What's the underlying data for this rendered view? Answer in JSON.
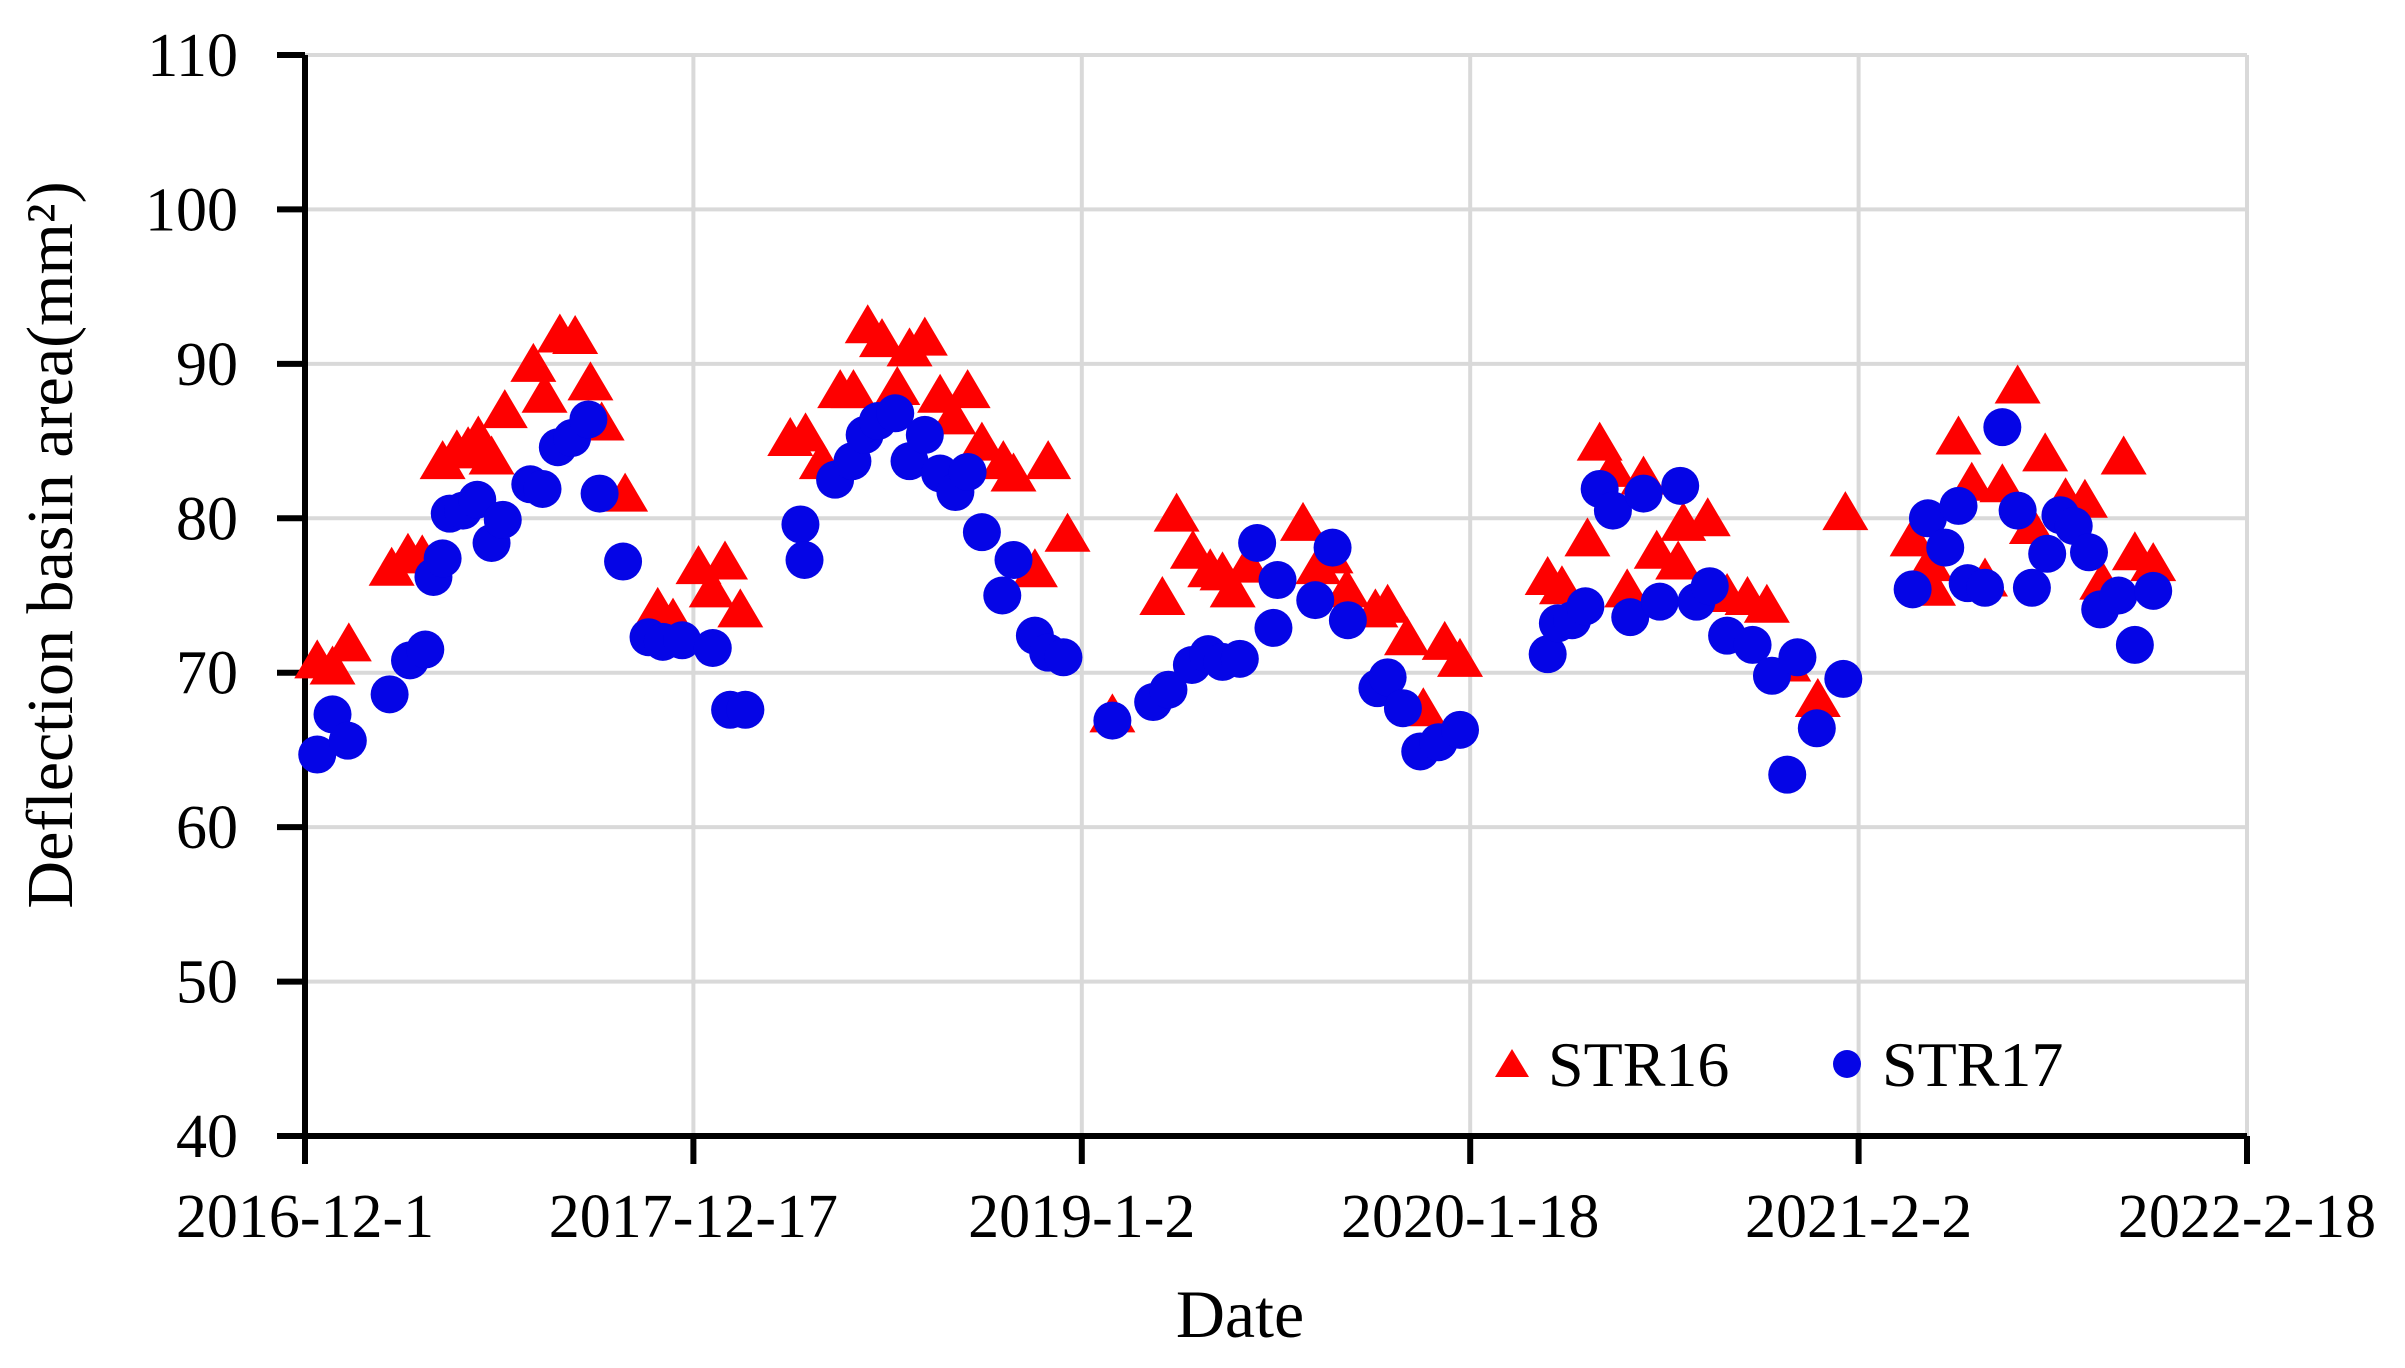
{
  "figure": {
    "background": "#ffffff"
  },
  "colors": {
    "grid": "#d9d9d9",
    "axis": "#000000",
    "text": "#000000",
    "str16": "#fe0000",
    "str17": "#0505e6"
  },
  "legend": {
    "str16_label": "STR16",
    "str17_label": "STR17"
  },
  "chart_data": {
    "type": "scatter",
    "title": "",
    "xlabel": "Date",
    "ylabel": "Deflection basin area(mm²)",
    "grid": true,
    "legend_position": "inside-bottom-right",
    "x_axis": {
      "unit": "days since 2016-12-1",
      "min": 0,
      "max": 1905,
      "tick_days": [
        0,
        381,
        762,
        1143,
        1524,
        1905
      ],
      "tick_labels": [
        "2016-12-1",
        "2017-12-17",
        "2019-1-2",
        "2020-1-18",
        "2021-2-2",
        "2022-2-18"
      ]
    },
    "y_axis": {
      "min": 40,
      "max": 110,
      "tick_step": 10,
      "ticks": [
        40,
        50,
        60,
        70,
        80,
        90,
        100,
        110
      ],
      "tick_labels": [
        "40",
        "50",
        "60",
        "70",
        "80",
        "90",
        "100",
        "110"
      ]
    },
    "series": [
      {
        "name": "STR16",
        "marker": "triangle",
        "color": "#fe0000",
        "points": [
          [
            12,
            70.8
          ],
          [
            27,
            70.4
          ],
          [
            43,
            71.9
          ],
          [
            85,
            76.8
          ],
          [
            101,
            77.7
          ],
          [
            115,
            77.6
          ],
          [
            135,
            83.7
          ],
          [
            149,
            84.4
          ],
          [
            160,
            84.6
          ],
          [
            170,
            85.3
          ],
          [
            183,
            84.0
          ],
          [
            196,
            87.0
          ],
          [
            224,
            90.0
          ],
          [
            235,
            88.0
          ],
          [
            250,
            91.9
          ],
          [
            265,
            91.8
          ],
          [
            280,
            88.8
          ],
          [
            291,
            86.2
          ],
          [
            314,
            81.6
          ],
          [
            346,
            74.2
          ],
          [
            361,
            73.5
          ],
          [
            386,
            76.9
          ],
          [
            399,
            75.4
          ],
          [
            412,
            77.2
          ],
          [
            427,
            74.1
          ],
          [
            476,
            85.2
          ],
          [
            491,
            85.5
          ],
          [
            507,
            83.7
          ],
          [
            525,
            88.3
          ],
          [
            538,
            88.3
          ],
          [
            552,
            92.5
          ],
          [
            566,
            91.6
          ],
          [
            581,
            88.5
          ],
          [
            593,
            91.0
          ],
          [
            608,
            91.7
          ],
          [
            623,
            88.0
          ],
          [
            636,
            86.6
          ],
          [
            650,
            88.3
          ],
          [
            664,
            84.9
          ],
          [
            685,
            83.7
          ],
          [
            695,
            82.9
          ],
          [
            716,
            76.7
          ],
          [
            729,
            83.7
          ],
          [
            748,
            79.0
          ],
          [
            792,
            67.3
          ],
          [
            841,
            74.9
          ],
          [
            855,
            80.3
          ],
          [
            871,
            77.9
          ],
          [
            888,
            76.7
          ],
          [
            900,
            76.5
          ],
          [
            910,
            75.4
          ],
          [
            925,
            77.0
          ],
          [
            979,
            79.7
          ],
          [
            994,
            76.9
          ],
          [
            1006,
            77.6
          ],
          [
            1022,
            75.4
          ],
          [
            1050,
            74.1
          ],
          [
            1062,
            74.4
          ],
          [
            1081,
            72.3
          ],
          [
            1097,
            67.7
          ],
          [
            1118,
            72.0
          ],
          [
            1133,
            70.9
          ],
          [
            1219,
            76.2
          ],
          [
            1233,
            75.6
          ],
          [
            1258,
            78.7
          ],
          [
            1270,
            84.9
          ],
          [
            1283,
            83.2
          ],
          [
            1297,
            75.4
          ],
          [
            1313,
            82.7
          ],
          [
            1326,
            77.9
          ],
          [
            1347,
            77.2
          ],
          [
            1352,
            79.7
          ],
          [
            1376,
            80.0
          ],
          [
            1395,
            75.1
          ],
          [
            1415,
            74.9
          ],
          [
            1434,
            74.4
          ],
          [
            1455,
            70.6
          ],
          [
            1484,
            68.3
          ],
          [
            1511,
            80.4
          ],
          [
            1577,
            78.7
          ],
          [
            1594,
            77.1
          ],
          [
            1597,
            75.5
          ],
          [
            1622,
            85.3
          ],
          [
            1635,
            82.3
          ],
          [
            1648,
            76.1
          ],
          [
            1665,
            82.2
          ],
          [
            1680,
            88.6
          ],
          [
            1694,
            79.5
          ],
          [
            1707,
            84.2
          ],
          [
            1727,
            81.3
          ],
          [
            1746,
            81.2
          ],
          [
            1763,
            75.9
          ],
          [
            1784,
            84.0
          ],
          [
            1795,
            77.8
          ],
          [
            1813,
            77.1
          ]
        ]
      },
      {
        "name": "STR17",
        "marker": "circle",
        "color": "#0505e6",
        "points": [
          [
            12,
            64.7
          ],
          [
            27,
            67.3
          ],
          [
            42,
            65.6
          ],
          [
            83,
            68.6
          ],
          [
            103,
            70.8
          ],
          [
            118,
            71.5
          ],
          [
            126,
            76.2
          ],
          [
            135,
            77.4
          ],
          [
            142,
            80.3
          ],
          [
            155,
            80.5
          ],
          [
            169,
            81.2
          ],
          [
            183,
            78.4
          ],
          [
            194,
            79.9
          ],
          [
            221,
            82.2
          ],
          [
            233,
            81.9
          ],
          [
            248,
            84.6
          ],
          [
            262,
            85.2
          ],
          [
            278,
            86.4
          ],
          [
            289,
            81.6
          ],
          [
            312,
            77.2
          ],
          [
            337,
            72.3
          ],
          [
            351,
            72.0
          ],
          [
            370,
            72.1
          ],
          [
            400,
            71.6
          ],
          [
            417,
            67.6
          ],
          [
            432,
            67.6
          ],
          [
            486,
            79.6
          ],
          [
            490,
            77.3
          ],
          [
            520,
            82.5
          ],
          [
            537,
            83.7
          ],
          [
            549,
            85.4
          ],
          [
            562,
            86.3
          ],
          [
            579,
            86.8
          ],
          [
            593,
            83.7
          ],
          [
            608,
            85.4
          ],
          [
            623,
            82.9
          ],
          [
            638,
            81.7
          ],
          [
            650,
            83.0
          ],
          [
            664,
            79.1
          ],
          [
            684,
            75.0
          ],
          [
            695,
            77.3
          ],
          [
            716,
            72.4
          ],
          [
            729,
            71.3
          ],
          [
            744,
            71.0
          ],
          [
            792,
            66.9
          ],
          [
            832,
            68.1
          ],
          [
            847,
            68.9
          ],
          [
            870,
            70.5
          ],
          [
            886,
            71.2
          ],
          [
            900,
            70.7
          ],
          [
            917,
            70.9
          ],
          [
            934,
            78.4
          ],
          [
            950,
            72.9
          ],
          [
            954,
            76.0
          ],
          [
            991,
            74.7
          ],
          [
            1008,
            78.1
          ],
          [
            1023,
            73.4
          ],
          [
            1052,
            69.0
          ],
          [
            1062,
            69.7
          ],
          [
            1077,
            67.7
          ],
          [
            1094,
            64.9
          ],
          [
            1112,
            65.5
          ],
          [
            1133,
            66.3
          ],
          [
            1219,
            71.2
          ],
          [
            1229,
            73.2
          ],
          [
            1243,
            73.4
          ],
          [
            1256,
            74.3
          ],
          [
            1270,
            81.9
          ],
          [
            1283,
            80.5
          ],
          [
            1300,
            73.6
          ],
          [
            1313,
            81.6
          ],
          [
            1329,
            74.6
          ],
          [
            1349,
            82.1
          ],
          [
            1365,
            74.6
          ],
          [
            1378,
            75.6
          ],
          [
            1395,
            72.4
          ],
          [
            1420,
            71.8
          ],
          [
            1439,
            69.8
          ],
          [
            1454,
            63.4
          ],
          [
            1464,
            71.0
          ],
          [
            1483,
            66.4
          ],
          [
            1509,
            69.6
          ],
          [
            1577,
            75.4
          ],
          [
            1592,
            80.0
          ],
          [
            1609,
            78.1
          ],
          [
            1622,
            80.8
          ],
          [
            1631,
            75.8
          ],
          [
            1648,
            75.5
          ],
          [
            1665,
            85.9
          ],
          [
            1680,
            80.5
          ],
          [
            1694,
            75.5
          ],
          [
            1709,
            77.7
          ],
          [
            1722,
            80.2
          ],
          [
            1735,
            79.5
          ],
          [
            1750,
            77.8
          ],
          [
            1761,
            74.1
          ],
          [
            1779,
            75.0
          ],
          [
            1795,
            71.8
          ],
          [
            1813,
            75.3
          ]
        ]
      }
    ]
  }
}
